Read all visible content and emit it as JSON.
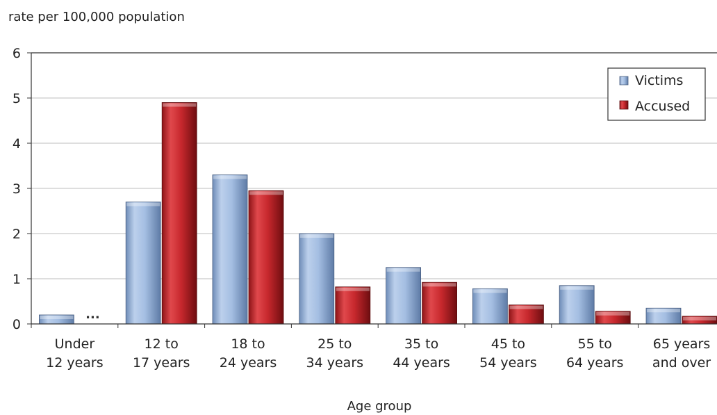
{
  "chart_data": {
    "type": "bar",
    "ylabel": "rate per 100,000 population",
    "xlabel": "Age group",
    "ylim": [
      0,
      6
    ],
    "yticks": [
      0,
      1,
      2,
      3,
      4,
      5,
      6
    ],
    "grid": true,
    "legend_position": "top-right",
    "categories": [
      [
        "Under",
        "12 years"
      ],
      [
        "12 to",
        "17 years"
      ],
      [
        "18 to",
        "24 years"
      ],
      [
        "25 to",
        "34 years"
      ],
      [
        "35 to",
        "44 years"
      ],
      [
        "45 to",
        "54 years"
      ],
      [
        "55 to",
        "64 years"
      ],
      [
        "65 years",
        "and over"
      ]
    ],
    "series": [
      {
        "name": "Victims",
        "color": "#9DB8DD",
        "values": [
          0.2,
          2.7,
          3.3,
          2.0,
          1.25,
          0.78,
          0.85,
          0.35
        ]
      },
      {
        "name": "Accused",
        "color": "#C0282D",
        "values": [
          null,
          4.9,
          2.95,
          0.82,
          0.92,
          0.42,
          0.28,
          0.17
        ]
      }
    ],
    "annotations": [
      {
        "category_index": 0,
        "series": "Accused",
        "text": "..."
      }
    ]
  }
}
